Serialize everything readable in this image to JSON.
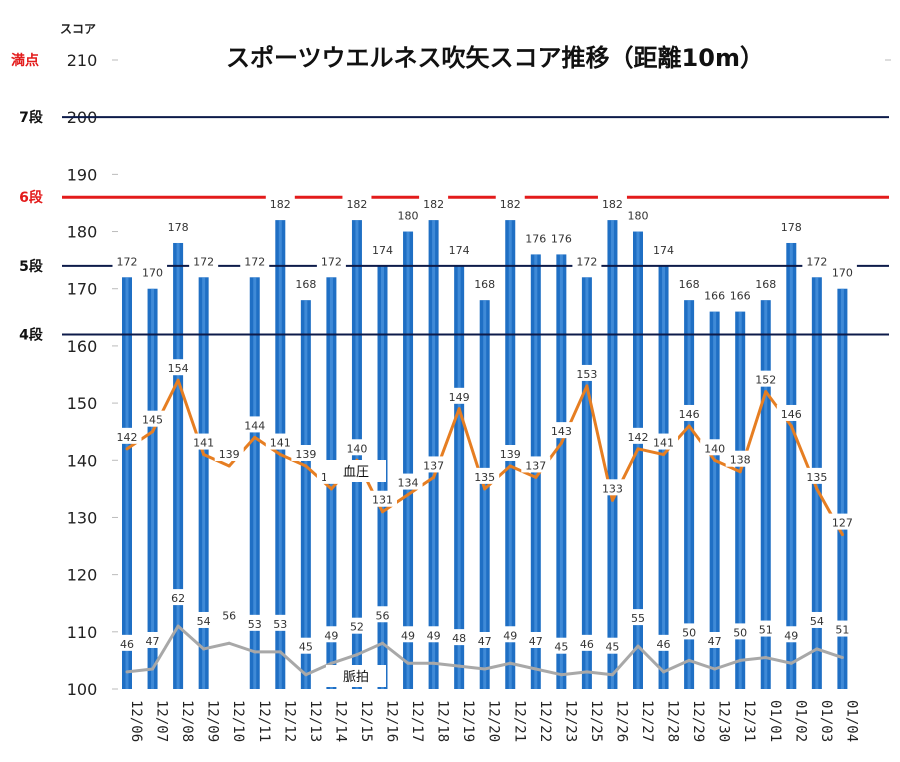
{
  "chart_data": {
    "type": "bar",
    "title": "スポーツウエルネス吹矢スコア推移（距離10m）",
    "ylabel": "スコア",
    "ylim": [
      100,
      210
    ],
    "yticks": [
      100,
      110,
      120,
      130,
      140,
      150,
      160,
      170,
      180,
      190,
      200,
      210
    ],
    "top_tick_label": "満点",
    "categories": [
      "12/06",
      "12/07",
      "12/08",
      "12/09",
      "12/10",
      "12/11",
      "12/12",
      "12/13",
      "12/14",
      "12/15",
      "12/16",
      "12/17",
      "12/18",
      "12/19",
      "12/20",
      "12/21",
      "12/22",
      "12/23",
      "12/25",
      "12/26",
      "12/27",
      "12/28",
      "12/29",
      "12/30",
      "12/31",
      "01/01",
      "01/02",
      "01/03",
      "01/04"
    ],
    "series": [
      {
        "values": [
          172,
          170,
          178,
          172,
          null,
          172,
          182,
          168,
          172,
          182,
          174,
          180,
          182,
          174,
          168,
          182,
          176,
          176,
          172,
          182,
          180,
          174,
          168,
          166,
          166,
          168,
          178,
          172,
          170
        ]
      },
      {
        "name": "血圧",
        "values": [
          142,
          145,
          154,
          141,
          139,
          144,
          141,
          139,
          135,
          140,
          131,
          134,
          137,
          149,
          135,
          139,
          137,
          143,
          153,
          133,
          142,
          141,
          146,
          140,
          138,
          152,
          146,
          135,
          127
        ]
      },
      {
        "name": "脈拍",
        "values": [
          46,
          47,
          62,
          54,
          56,
          53,
          53,
          45,
          49,
          52,
          56,
          49,
          49,
          48,
          47,
          49,
          47,
          45,
          46,
          45,
          55,
          46,
          50,
          47,
          50,
          51,
          49,
          54,
          51
        ]
      }
    ],
    "reference_lines": [
      {
        "label": "7段",
        "value": 200,
        "color": "#0d1b4a"
      },
      {
        "label": "6段",
        "value": 186,
        "color": "#e31b1b"
      },
      {
        "label": "5段",
        "value": 174,
        "color": "#0d1b4a"
      },
      {
        "label": "4段",
        "value": 162,
        "color": "#0d1b4a"
      }
    ],
    "colors": {
      "bar": "#1f6fc4",
      "bar_highlight": "#5aa0e8",
      "bp_line": "#e67e22",
      "pulse_line": "#a8a8a8",
      "top_label": "#e31b1b"
    },
    "grid": false
  }
}
